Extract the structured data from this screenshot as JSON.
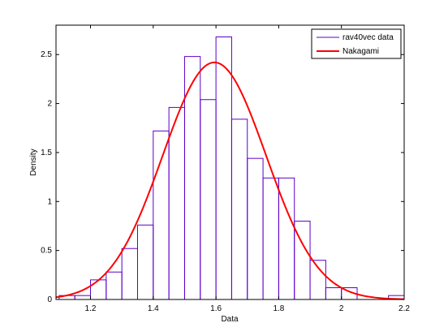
{
  "chart_data": {
    "type": "bar",
    "subtype": "histogram-with-fit",
    "xlabel": "Data",
    "ylabel": "Density",
    "xlim": [
      1.09,
      2.2
    ],
    "ylim": [
      0,
      2.8
    ],
    "xticks": [
      1.2,
      1.4,
      1.6,
      1.8,
      2,
      2.2
    ],
    "xtick_labels": [
      "1.2",
      "1.4",
      "1.6",
      "1.8",
      "2",
      "2.2"
    ],
    "yticks": [
      0,
      0.5,
      1,
      1.5,
      2,
      2.5
    ],
    "ytick_labels": [
      "0",
      "0.5",
      "1",
      "1.5",
      "2",
      "2.5"
    ],
    "grid": false,
    "legend_position": "top-right",
    "histogram": {
      "name": "rav40vec data",
      "color": "#5b00c8",
      "bin_edges": [
        1.1,
        1.15,
        1.2,
        1.25,
        1.3,
        1.35,
        1.4,
        1.45,
        1.5,
        1.55,
        1.6,
        1.65,
        1.7,
        1.75,
        1.8,
        1.85,
        1.9,
        1.95,
        2.0,
        2.05,
        2.1,
        2.15,
        2.2
      ],
      "values": [
        0.04,
        0.04,
        0.2,
        0.28,
        0.52,
        0.76,
        1.72,
        1.96,
        2.48,
        2.04,
        2.68,
        1.84,
        1.44,
        1.24,
        1.24,
        0.8,
        0.4,
        0.12,
        0.12,
        0.0,
        0.0,
        0.04
      ]
    },
    "fit": {
      "name": "Nakagami",
      "color": "#ff0000",
      "mean": 1.595,
      "sd": 0.165,
      "peak_density": 2.42,
      "x_range": [
        1.09,
        2.2
      ]
    }
  }
}
